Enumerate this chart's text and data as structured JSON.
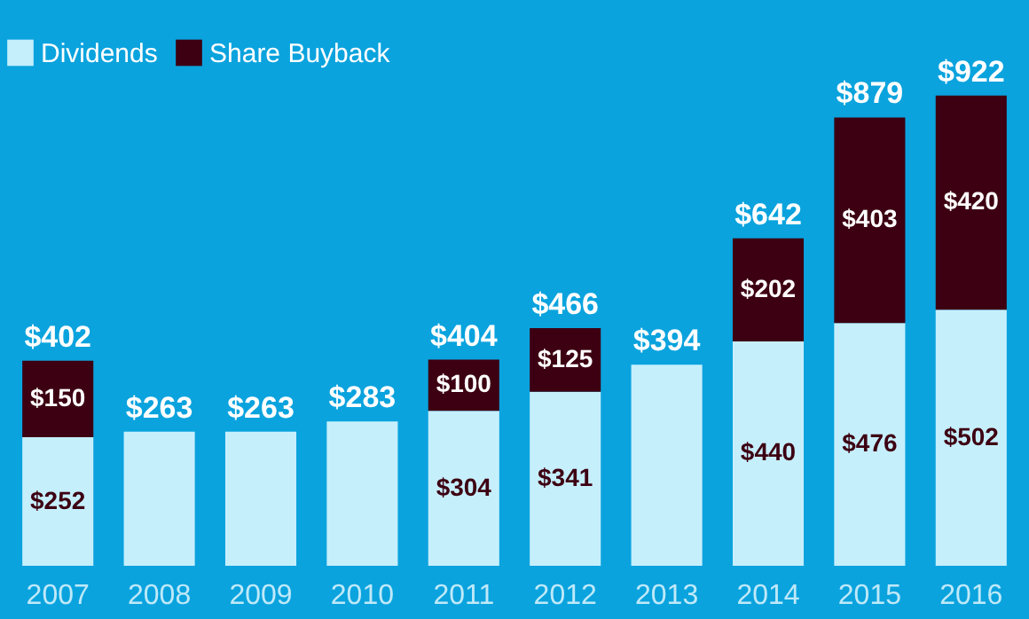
{
  "chart_data": {
    "type": "bar",
    "stacked": true,
    "legend": "top left",
    "categories": [
      "2007",
      "2008",
      "2009",
      "2010",
      "2011",
      "2012",
      "2013",
      "2014",
      "2015",
      "2016"
    ],
    "series": [
      {
        "name": "Dividends",
        "color": "#c6effc",
        "values": [
          252,
          263,
          263,
          283,
          304,
          341,
          394,
          440,
          476,
          502
        ],
        "value_labels": [
          "$252",
          null,
          null,
          null,
          "$304",
          "$341",
          null,
          "$440",
          "$476",
          "$502"
        ]
      },
      {
        "name": "Share Buyback",
        "color": "#3d0012",
        "values": [
          150,
          null,
          null,
          null,
          100,
          125,
          null,
          202,
          403,
          420
        ],
        "value_labels": [
          "$150",
          null,
          null,
          null,
          "$100",
          "$125",
          null,
          "$202",
          "$403",
          "$420"
        ]
      }
    ],
    "totals": [
      "$402",
      "$263",
      "$263",
      "$283",
      "$404",
      "$466",
      "$394",
      "$642",
      "$879",
      "$922"
    ]
  }
}
